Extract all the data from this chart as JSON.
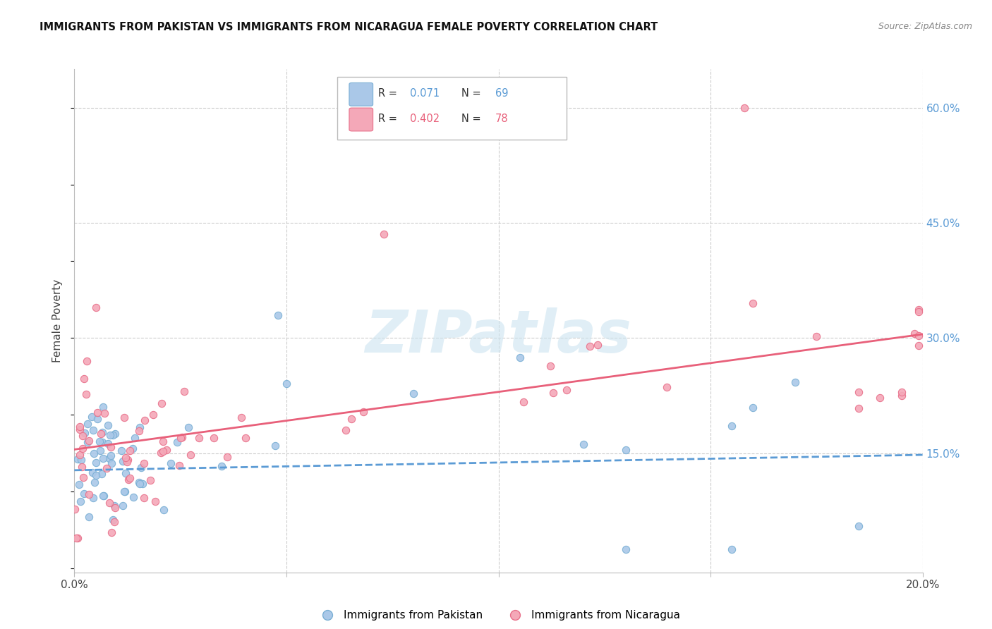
{
  "title": "IMMIGRANTS FROM PAKISTAN VS IMMIGRANTS FROM NICARAGUA FEMALE POVERTY CORRELATION CHART",
  "source": "Source: ZipAtlas.com",
  "ylabel": "Female Poverty",
  "xlim": [
    0.0,
    0.2
  ],
  "ylim": [
    -0.005,
    0.65
  ],
  "right_yticks": [
    0.15,
    0.3,
    0.45,
    0.6
  ],
  "right_yticklabels": [
    "15.0%",
    "30.0%",
    "45.0%",
    "60.0%"
  ],
  "pakistan_color": "#aac8e8",
  "pakistan_edge": "#7aafd4",
  "nicaragua_color": "#f4a8b8",
  "nicaragua_edge": "#e8708a",
  "pakistan_line_color": "#5b9bd5",
  "nicaragua_line_color": "#e8607a",
  "watermark": "ZIPatlas",
  "watermark_color": "#cce4f0",
  "pakistan_R": 0.071,
  "nicaragua_R": 0.402,
  "pakistan_N": 69,
  "nicaragua_N": 78,
  "grid_color": "#cccccc",
  "title_color": "#111111",
  "source_color": "#888888",
  "axis_label_color": "#444444",
  "right_tick_color": "#5b9bd5",
  "bottom_tick_color": "#444444"
}
